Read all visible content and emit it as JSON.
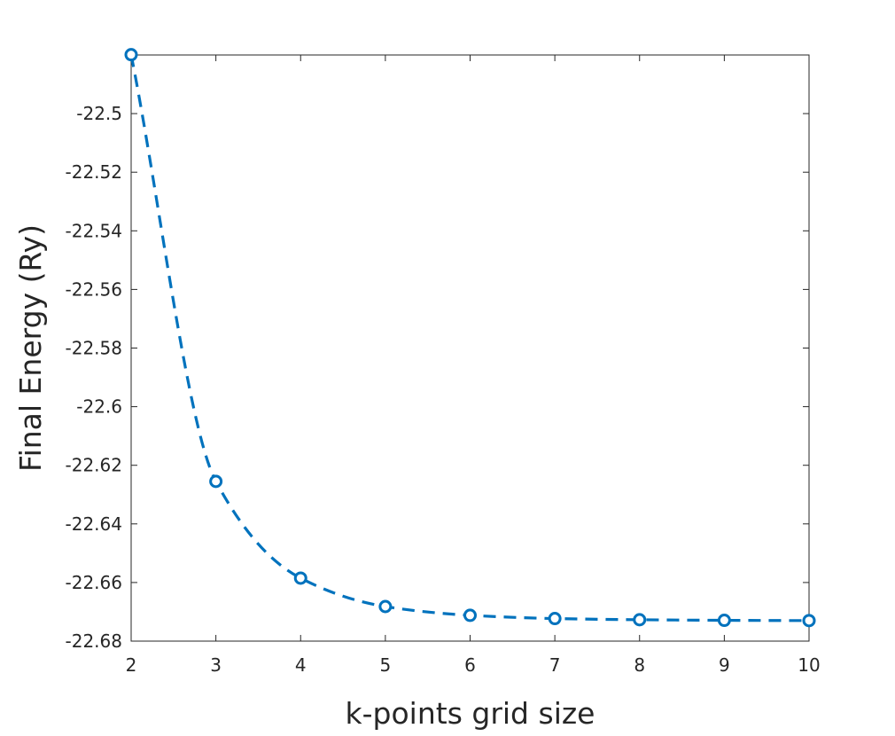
{
  "chart_data": {
    "type": "line",
    "title": "",
    "xlabel": "k-points grid size",
    "ylabel": "Final Energy (Ry)",
    "xlim": [
      2,
      10
    ],
    "ylim": [
      -22.68,
      -22.48
    ],
    "xticks": [
      2,
      3,
      4,
      5,
      6,
      7,
      8,
      9,
      10
    ],
    "xtick_labels": [
      "2",
      "3",
      "4",
      "5",
      "6",
      "7",
      "8",
      "9",
      "10"
    ],
    "yticks": [
      -22.5,
      -22.52,
      -22.54,
      -22.56,
      -22.58,
      -22.6,
      -22.62,
      -22.64,
      -22.66,
      -22.68
    ],
    "ytick_labels": [
      "-22.5",
      "-22.52",
      "-22.54",
      "-22.56",
      "-22.58",
      "-22.6",
      "-22.62",
      "-22.64",
      "-22.66",
      "-22.68"
    ],
    "grid": false,
    "series": [
      {
        "color": "#0072BD",
        "line_style": "dashed",
        "marker": "circle",
        "x": [
          2,
          3,
          4,
          5,
          6,
          7,
          8,
          9,
          10
        ],
        "y": [
          -22.4799,
          -22.6255,
          -22.6585,
          -22.6682,
          -22.6712,
          -22.6723,
          -22.6727,
          -22.6729,
          -22.673
        ]
      }
    ]
  }
}
